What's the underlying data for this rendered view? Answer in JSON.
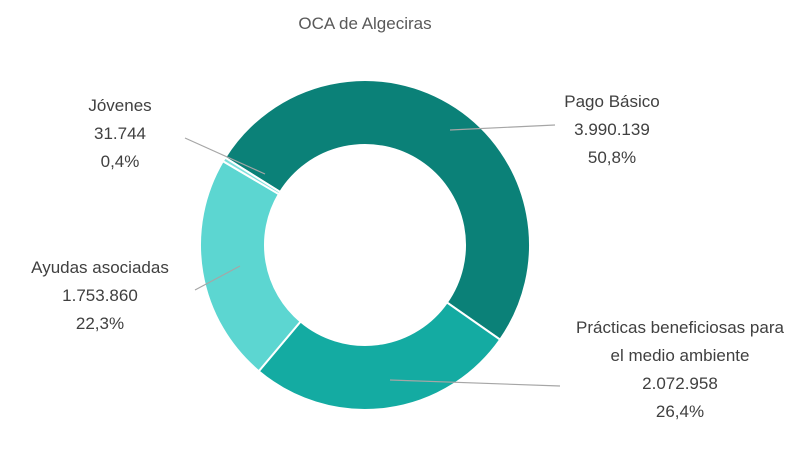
{
  "chart_data": {
    "type": "donut",
    "title": "OCA de Algeciras",
    "categories": [
      "Pago Básico",
      "Prácticas beneficiosas para el medio ambiente",
      "Ayudas asociadas",
      "Jóvenes"
    ],
    "values": [
      3990139,
      2072958,
      1753860,
      31744
    ],
    "value_labels": [
      "3.990.139",
      "2.072.958",
      "1.753.860",
      "31.744"
    ],
    "percentages": [
      50.8,
      26.4,
      22.3,
      0.4
    ],
    "percentage_labels": [
      "50,8%",
      "26,4%",
      "22,3%",
      "0,4%"
    ],
    "colors": [
      "#0b8178",
      "#14aba2",
      "#5cd6d1",
      "#7fe0dc"
    ]
  }
}
